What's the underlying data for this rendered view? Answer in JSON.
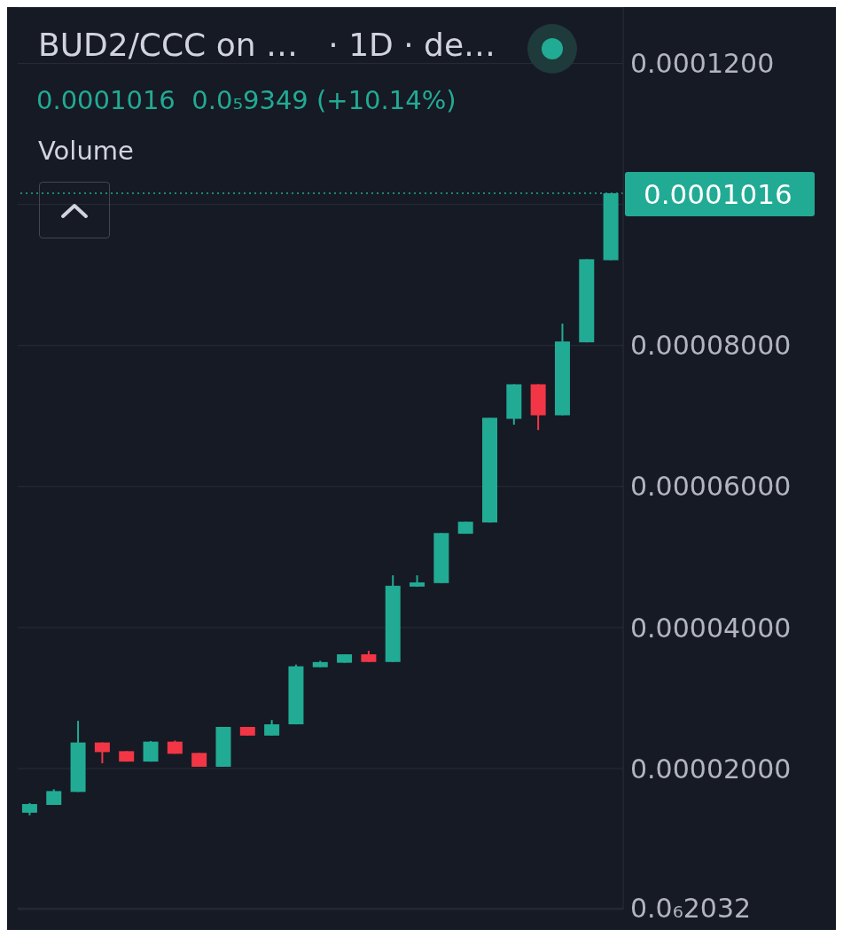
{
  "chart_data": {
    "type": "candlestick",
    "title": "BUD2/CCC on …   · 1D · de…",
    "subtitle": "0.0001016  0.0₅9349 (+10.14%)",
    "annotations": [
      "Volume"
    ],
    "categories": [
      null,
      null,
      null,
      null,
      null,
      null,
      null,
      null,
      null,
      null,
      null,
      null,
      null,
      null,
      null,
      null,
      null,
      null,
      null,
      null,
      null,
      null,
      null,
      null,
      null
    ],
    "ohlc": [
      [
        1.373e-05,
        1.51e-05,
        1.337e-05,
        1.496e-05
      ],
      [
        1.484e-05,
        1.705e-05,
        1.484e-05,
        1.68e-05
      ],
      [
        1.668e-05,
        2.676e-05,
        1.668e-05,
        2.369e-05
      ],
      [
        2.369e-05,
        2.369e-05,
        2.074e-05,
        2.233e-05
      ],
      [
        2.246e-05,
        2.246e-05,
        2.098e-05,
        2.098e-05
      ],
      [
        2.098e-05,
        2.39e-05,
        2.098e-05,
        2.381e-05
      ],
      [
        2.381e-05,
        2.396e-05,
        2.209e-05,
        2.209e-05
      ],
      [
        2.221e-05,
        2.221e-05,
        2.025e-05,
        2.025e-05
      ],
      [
        2.025e-05,
        2.59e-05,
        2.025e-05,
        2.59e-05
      ],
      [
        2.59e-05,
        2.59e-05,
        2.467e-05,
        2.467e-05
      ],
      [
        2.467e-05,
        2.688e-05,
        2.467e-05,
        2.627e-05
      ],
      [
        2.627e-05,
        3.474e-05,
        2.627e-05,
        3.45e-05
      ],
      [
        3.437e-05,
        3.527e-05,
        3.437e-05,
        3.51e-05
      ],
      [
        3.5e-05,
        3.62e-05,
        3.5e-05,
        3.62e-05
      ],
      [
        3.62e-05,
        3.67e-05,
        3.511e-05,
        3.511e-05
      ],
      [
        3.511e-05,
        4.74e-05,
        3.511e-05,
        4.592e-05
      ],
      [
        4.58e-05,
        4.74e-05,
        4.58e-05,
        4.64e-05
      ],
      [
        4.63e-05,
        5.34e-05,
        4.63e-05,
        5.34e-05
      ],
      [
        5.33e-05,
        5.5e-05,
        5.33e-05,
        5.5e-05
      ],
      [
        5.49e-05,
        6.975e-05,
        5.49e-05,
        6.975e-05
      ],
      [
        6.96e-05,
        7.45e-05,
        6.877e-05,
        7.45e-05
      ],
      [
        7.45e-05,
        7.45e-05,
        6.8e-05,
        7.01e-05
      ],
      [
        7.01e-05,
        8.31e-05,
        7.01e-05,
        8.057e-05
      ],
      [
        8.045e-05,
        9.224e-05,
        8.045e-05,
        9.224e-05
      ],
      [
        9.21e-05,
        0.0001016,
        9.21e-05,
        0.0001016
      ]
    ],
    "colors": [
      "#22ab94",
      "#22ab94",
      "#22ab94",
      "#f23645",
      "#f23645",
      "#22ab94",
      "#f23645",
      "#f23645",
      "#22ab94",
      "#f23645",
      "#22ab94",
      "#22ab94",
      "#22ab94",
      "#22ab94",
      "#f23645",
      "#22ab94",
      "#22ab94",
      "#22ab94",
      "#22ab94",
      "#22ab94",
      "#22ab94",
      "#f23645",
      "#22ab94",
      "#22ab94",
      "#22ab94"
    ],
    "ylim": [
      0,
      0.000128
    ],
    "yticks": [
      {
        "value": 2.032e-07,
        "label": "0.0₆2032"
      },
      {
        "value": 2e-05,
        "label": "0.00002000"
      },
      {
        "value": 4e-05,
        "label": "0.00004000"
      },
      {
        "value": 6e-05,
        "label": "0.00006000"
      },
      {
        "value": 8e-05,
        "label": "0.00008000"
      },
      {
        "value": 0.0001,
        "label": null
      },
      {
        "value": 0.00012,
        "label": "0.0001200"
      }
    ],
    "grid": "y",
    "ref_lines": [
      {
        "axis": "y",
        "value": 0.0001016,
        "label": "0.0001016",
        "color": "#22ab94",
        "line_style": "dotted"
      }
    ]
  }
}
